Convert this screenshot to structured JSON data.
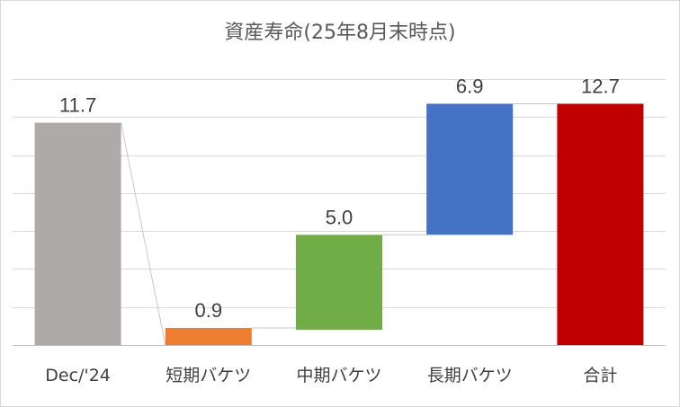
{
  "chart_data": {
    "type": "waterfall",
    "title": "資産寿命(25年8月末時点)",
    "categories": [
      "Dec/'24",
      "短期バケツ",
      "中期バケツ",
      "長期バケツ",
      "合計"
    ],
    "bars": [
      {
        "label": "Dec/'24",
        "base": 0,
        "value": 11.7,
        "value_label": "11.7",
        "color": "#aeaaaa"
      },
      {
        "label": "短期バケツ",
        "base": 0,
        "value": 0.9,
        "value_label": "0.9",
        "color": "#ed7d31"
      },
      {
        "label": "中期バケツ",
        "base": 0.8,
        "value": 5.0,
        "value_label": "5.0",
        "color": "#70ad47"
      },
      {
        "label": "長期バケツ",
        "base": 5.8,
        "value": 6.9,
        "value_label": "6.9",
        "color": "#4472c4"
      },
      {
        "label": "合計",
        "base": 0,
        "value": 12.7,
        "value_label": "12.7",
        "color": "#c00000"
      }
    ],
    "ylim": [
      0,
      14
    ],
    "gridlines": [
      0,
      2,
      4,
      6,
      8,
      10,
      12,
      14
    ],
    "grid": true
  }
}
